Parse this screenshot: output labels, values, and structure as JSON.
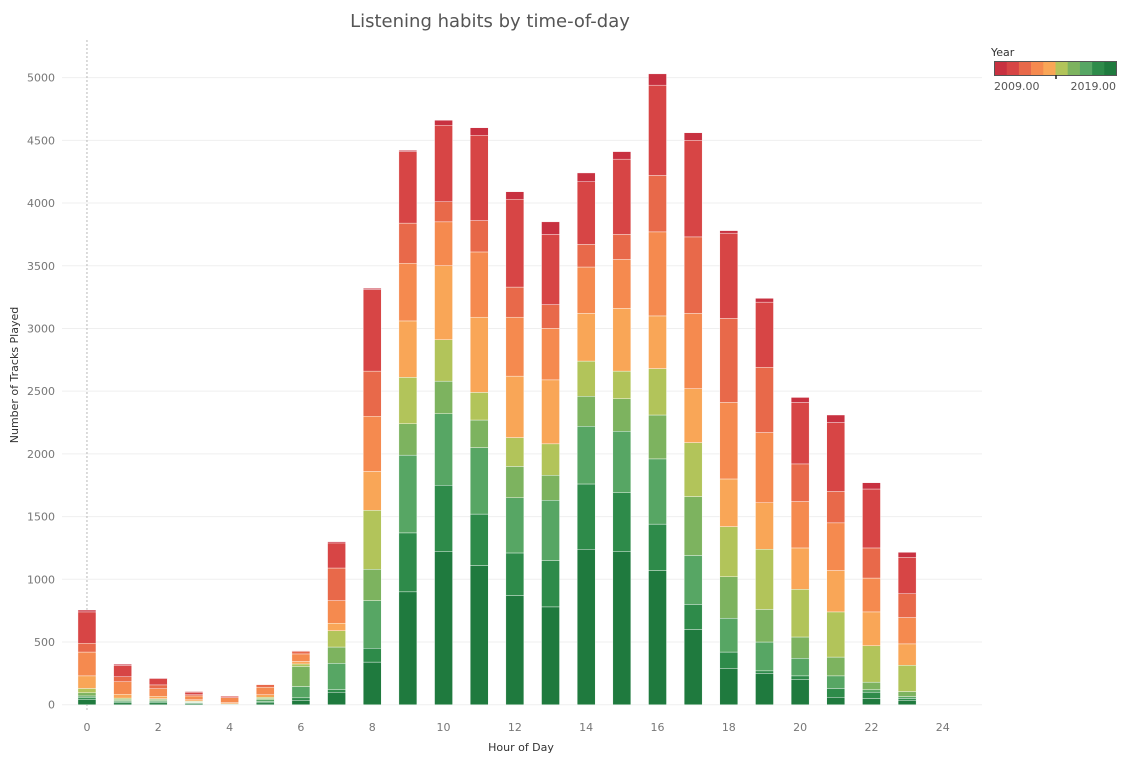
{
  "chart_data": {
    "type": "bar",
    "stacked": true,
    "title": "Listening habits by time-of-day",
    "xlabel": "Hour of Day",
    "ylabel": "Number of Tracks Played",
    "x": [
      0,
      1,
      2,
      3,
      4,
      5,
      6,
      7,
      8,
      9,
      10,
      11,
      12,
      13,
      14,
      15,
      16,
      17,
      18,
      19,
      20,
      21,
      22,
      23
    ],
    "xlim": [
      -0.7,
      25.1
    ],
    "ylim": [
      -50,
      5300
    ],
    "xticks": [
      0,
      2,
      4,
      6,
      8,
      10,
      12,
      14,
      16,
      18,
      20,
      22,
      24
    ],
    "yticks": [
      0,
      500,
      1000,
      1500,
      2000,
      2500,
      3000,
      3500,
      4000,
      4500,
      5000
    ],
    "grid": true,
    "reference_line_x": 0,
    "legend": {
      "title": "Year",
      "position": "top-right",
      "min_label": "2009.00",
      "max_label": "2019.00"
    },
    "series": [
      {
        "year": 2019,
        "color": "#1f7a3e",
        "values": [
          40,
          15,
          15,
          10,
          5,
          15,
          35,
          100,
          340,
          900,
          1220,
          1110,
          870,
          780,
          1240,
          1220,
          1070,
          600,
          290,
          250,
          200,
          60,
          50,
          35
        ]
      },
      {
        "year": 2018,
        "color": "#2e8b4a",
        "values": [
          15,
          8,
          8,
          5,
          2,
          10,
          20,
          20,
          110,
          470,
          530,
          410,
          340,
          370,
          520,
          470,
          370,
          200,
          130,
          20,
          30,
          70,
          50,
          15
        ]
      },
      {
        "year": 2017,
        "color": "#57a664",
        "values": [
          15,
          10,
          10,
          5,
          0,
          15,
          90,
          210,
          380,
          620,
          570,
          530,
          440,
          480,
          460,
          490,
          520,
          390,
          270,
          230,
          140,
          100,
          20,
          15
        ]
      },
      {
        "year": 2016,
        "color": "#7db35f",
        "values": [
          25,
          10,
          10,
          5,
          0,
          10,
          160,
          130,
          250,
          250,
          260,
          220,
          250,
          200,
          240,
          260,
          350,
          470,
          330,
          260,
          170,
          150,
          60,
          40
        ]
      },
      {
        "year": 2015,
        "color": "#b2c45a",
        "values": [
          35,
          10,
          5,
          5,
          0,
          10,
          20,
          130,
          470,
          370,
          330,
          220,
          230,
          250,
          280,
          220,
          370,
          430,
          400,
          480,
          380,
          360,
          290,
          210
        ]
      },
      {
        "year": 2014,
        "color": "#f9a657",
        "values": [
          100,
          30,
          20,
          10,
          10,
          20,
          20,
          60,
          310,
          450,
          590,
          600,
          490,
          510,
          380,
          500,
          420,
          430,
          380,
          370,
          330,
          330,
          270,
          170
        ]
      },
      {
        "year": 2013,
        "color": "#f58a4f",
        "values": [
          190,
          100,
          60,
          30,
          40,
          60,
          60,
          180,
          440,
          460,
          350,
          520,
          470,
          410,
          370,
          390,
          670,
          600,
          610,
          560,
          370,
          380,
          270,
          210
        ]
      },
      {
        "year": 2012,
        "color": "#e8694a",
        "values": [
          70,
          40,
          30,
          10,
          0,
          20,
          20,
          260,
          360,
          320,
          160,
          250,
          240,
          190,
          180,
          200,
          450,
          610,
          670,
          520,
          300,
          250,
          240,
          190
        ]
      },
      {
        "year": 2011,
        "color": "#d74545",
        "values": [
          250,
          90,
          50,
          20,
          10,
          0,
          0,
          200,
          650,
          570,
          610,
          680,
          700,
          560,
          500,
          600,
          720,
          770,
          680,
          520,
          490,
          550,
          470,
          290
        ]
      },
      {
        "year": 2010,
        "color": "#c83140",
        "values": [
          15,
          10,
          5,
          5,
          0,
          0,
          5,
          10,
          10,
          10,
          40,
          60,
          60,
          100,
          70,
          60,
          90,
          60,
          20,
          30,
          40,
          60,
          50,
          40
        ]
      }
    ]
  }
}
